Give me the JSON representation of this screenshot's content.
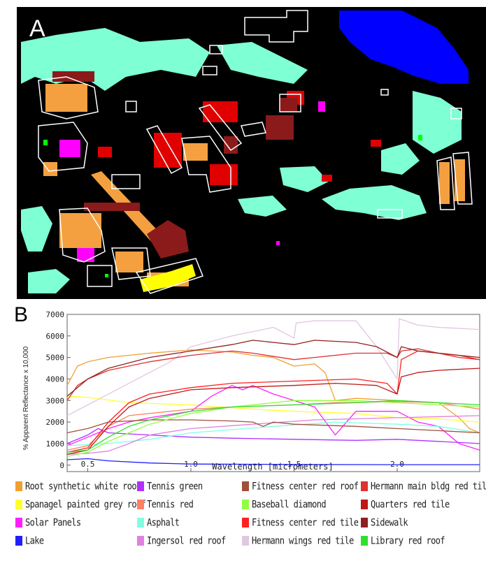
{
  "panel_a": {
    "label": "A",
    "colors": {
      "background": "#000000",
      "lake": "#0000ff",
      "asphalt": "#7fffd4",
      "roof": "#f4a040",
      "red_tile": "#e00000",
      "dark_red": "#8b1a1a",
      "solar": "#ff00ff",
      "yellow": "#ffff00",
      "green": "#00ff00",
      "outline": "#ffffff"
    }
  },
  "panel_b_label": "B",
  "chart_data": {
    "type": "line",
    "xlabel": "Wavelength [micrometers]",
    "ylabel": "% Apparent Reflectance x 10,000",
    "xlim": [
      0.4,
      2.4
    ],
    "ylim": [
      -300,
      7000
    ],
    "xticks": [
      "0.5",
      "1.0",
      "1.5",
      "2.0"
    ],
    "yticks": [
      "0",
      "1000",
      "2000",
      "3000",
      "4000",
      "5000",
      "6000",
      "7000"
    ],
    "grid": false,
    "series": [
      {
        "name": "Root synthetic white roof",
        "color": "#f0a030",
        "x": [
          0.4,
          0.45,
          0.5,
          0.6,
          0.8,
          1.0,
          1.2,
          1.3,
          1.4,
          1.5,
          1.6,
          1.65,
          1.7,
          1.8,
          1.9,
          2.0,
          2.1,
          2.2,
          2.3,
          2.35,
          2.4
        ],
        "y": [
          3700,
          4600,
          4800,
          5000,
          5200,
          5350,
          5250,
          5100,
          5000,
          4600,
          4700,
          4300,
          3000,
          3100,
          3050,
          3000,
          2950,
          2900,
          2200,
          1700,
          1500
        ]
      },
      {
        "name": "Spanagel painted grey roof",
        "color": "#ffff30",
        "x": [
          0.4,
          0.5,
          0.7,
          1.0,
          1.3,
          1.5,
          1.8,
          2.0,
          2.2,
          2.4
        ],
        "y": [
          3200,
          3150,
          2900,
          2800,
          2600,
          2500,
          2400,
          2200,
          2150,
          2000
        ]
      },
      {
        "name": "Solar Panels",
        "color": "#ff20ff",
        "x": [
          0.4,
          0.5,
          0.6,
          0.7,
          0.8,
          1.0,
          1.1,
          1.2,
          1.25,
          1.3,
          1.4,
          1.5,
          1.6,
          1.7,
          1.8,
          2.0,
          2.1,
          2.2,
          2.3,
          2.4
        ],
        "y": [
          900,
          1300,
          1700,
          2000,
          2200,
          2500,
          3200,
          3700,
          3500,
          3700,
          3300,
          3000,
          2700,
          1400,
          2500,
          2500,
          2000,
          1800,
          1000,
          700
        ]
      },
      {
        "name": "Lake",
        "color": "#2020ff",
        "x": [
          0.4,
          0.5,
          0.6,
          0.8,
          1.0,
          1.5,
          2.0,
          2.4
        ],
        "y": [
          250,
          300,
          200,
          100,
          50,
          30,
          20,
          20
        ]
      },
      {
        "name": "Tennis green",
        "color": "#b030ff",
        "x": [
          0.4,
          0.5,
          0.55,
          0.6,
          0.8,
          1.0,
          1.2,
          1.5,
          1.8,
          2.0,
          2.2,
          2.4
        ],
        "y": [
          1000,
          1400,
          1700,
          1500,
          1400,
          1300,
          1250,
          1200,
          1150,
          1200,
          1100,
          1000
        ]
      },
      {
        "name": "Tennis red",
        "color": "#ff8060",
        "x": [
          0.4,
          0.5,
          0.6,
          0.7,
          0.9,
          1.0,
          1.2,
          1.5,
          1.7,
          2.0,
          2.2,
          2.4
        ],
        "y": [
          700,
          900,
          1800,
          2300,
          2500,
          2600,
          2700,
          2800,
          2900,
          2950,
          2900,
          2600
        ]
      },
      {
        "name": "Asphalt",
        "color": "#80ffe0",
        "x": [
          0.4,
          0.6,
          0.8,
          1.0,
          1.4,
          1.7,
          2.0,
          2.2,
          2.4
        ],
        "y": [
          900,
          1000,
          1200,
          1500,
          1800,
          2000,
          1900,
          1800,
          1500
        ]
      },
      {
        "name": "Ingersol red roof",
        "color": "#e080e0",
        "x": [
          0.4,
          0.5,
          0.6,
          0.7,
          0.8,
          1.0,
          1.3,
          1.6,
          2.0,
          2.4
        ],
        "y": [
          500,
          550,
          650,
          1000,
          1400,
          1700,
          1900,
          2100,
          2200,
          2300
        ]
      },
      {
        "name": "Fitness center red roof",
        "color": "#a0503a",
        "x": [
          0.4,
          0.5,
          0.6,
          0.8,
          1.0,
          1.2,
          1.3,
          1.35,
          1.4,
          1.5,
          1.8,
          2.0,
          2.2,
          2.4
        ],
        "y": [
          1500,
          1700,
          2000,
          2100,
          2100,
          2050,
          2000,
          1800,
          2000,
          1900,
          1800,
          1700,
          1600,
          1500
        ]
      },
      {
        "name": "Baseball diamond",
        "color": "#90ff40",
        "x": [
          0.4,
          0.5,
          0.6,
          0.7,
          0.8,
          1.0,
          1.2,
          1.5,
          1.8,
          2.0,
          2.2,
          2.4
        ],
        "y": [
          400,
          600,
          1100,
          1500,
          1900,
          2400,
          2700,
          3000,
          3000,
          2900,
          2800,
          2700
        ]
      },
      {
        "name": "Fitness center red tile",
        "color": "#ff2020",
        "x": [
          0.4,
          0.5,
          0.6,
          0.7,
          0.8,
          1.0,
          1.2,
          1.5,
          1.8,
          1.95,
          2.0,
          2.02,
          2.1,
          2.2,
          2.3,
          2.4
        ],
        "y": [
          600,
          800,
          2000,
          2900,
          3300,
          3600,
          3800,
          3900,
          4000,
          3800,
          3300,
          4900,
          5300,
          5200,
          5000,
          4900
        ]
      },
      {
        "name": "Hermann wings red tile",
        "color": "#e0c8e0",
        "x": [
          0.4,
          0.5,
          0.7,
          0.9,
          1.0,
          1.2,
          1.4,
          1.5,
          1.51,
          1.6,
          1.8,
          1.9,
          2.0,
          2.01,
          2.1,
          2.2,
          2.4
        ],
        "y": [
          2300,
          2800,
          3800,
          4800,
          5500,
          6000,
          6400,
          5900,
          6600,
          6700,
          6700,
          5500,
          4000,
          6800,
          6500,
          6400,
          6300
        ]
      },
      {
        "name": "Hermann main bldg red tile",
        "color": "#e03030",
        "x": [
          0.4,
          0.45,
          0.5,
          0.6,
          0.8,
          1.0,
          1.2,
          1.3,
          1.5,
          1.6,
          1.8,
          1.95,
          2.0,
          2.02,
          2.1,
          2.2,
          2.3,
          2.4
        ],
        "y": [
          3000,
          3700,
          4000,
          4400,
          4800,
          5100,
          5300,
          5200,
          4900,
          5000,
          5200,
          5200,
          5000,
          5300,
          5400,
          5200,
          5100,
          4900
        ]
      },
      {
        "name": "Quarters red tile",
        "color": "#c01818",
        "x": [
          0.4,
          0.5,
          0.6,
          0.7,
          0.8,
          1.0,
          1.2,
          1.5,
          1.7,
          1.9,
          2.0,
          2.02,
          2.1,
          2.2,
          2.4
        ],
        "y": [
          500,
          700,
          1800,
          2700,
          3100,
          3500,
          3600,
          3700,
          3800,
          3700,
          3300,
          4100,
          4300,
          4400,
          4500
        ]
      },
      {
        "name": "Sidewalk",
        "color": "#902020",
        "x": [
          0.4,
          0.45,
          0.5,
          0.6,
          0.8,
          1.0,
          1.2,
          1.3,
          1.4,
          1.5,
          1.55,
          1.6,
          1.8,
          1.9,
          2.0,
          2.02,
          2.1,
          2.2,
          2.3,
          2.4
        ],
        "y": [
          3200,
          3600,
          4000,
          4500,
          5000,
          5300,
          5600,
          5800,
          5700,
          5600,
          5700,
          5800,
          5700,
          5500,
          5000,
          5500,
          5300,
          5200,
          5100,
          5000
        ]
      },
      {
        "name": "Library red roof",
        "color": "#30e030",
        "x": [
          0.4,
          0.5,
          0.6,
          0.7,
          0.8,
          1.0,
          1.2,
          1.5,
          1.8,
          2.0,
          2.2,
          2.4
        ],
        "y": [
          600,
          700,
          1300,
          1800,
          2100,
          2500,
          2700,
          2800,
          2900,
          3000,
          2900,
          2800
        ]
      }
    ]
  }
}
